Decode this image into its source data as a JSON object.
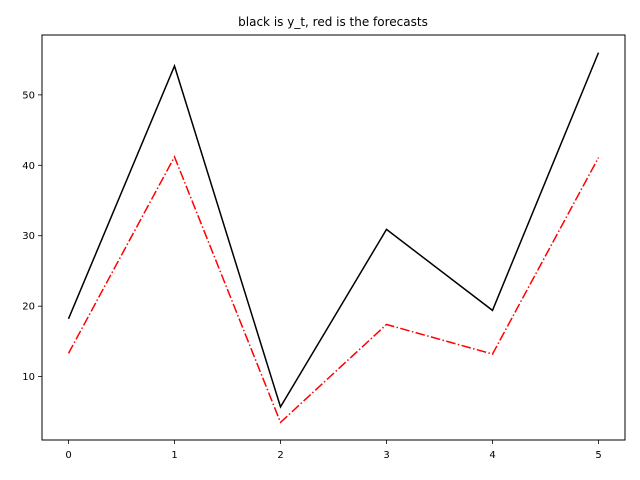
{
  "chart_data": {
    "type": "line",
    "title": "black is y_t, red is the forecasts",
    "xlabel": "",
    "ylabel": "",
    "x": [
      0,
      1,
      2,
      3,
      4,
      5
    ],
    "xticks": [
      0,
      1,
      2,
      3,
      4,
      5
    ],
    "yticks": [
      10,
      20,
      30,
      40,
      50
    ],
    "xlim": [
      -0.25,
      5.25
    ],
    "ylim": [
      1.0,
      58.5
    ],
    "grid": false,
    "series": [
      {
        "values": [
          18.2,
          54.1,
          5.7,
          30.9,
          19.4,
          56.0
        ],
        "color": "#000000",
        "style": "solid"
      },
      {
        "values": [
          13.3,
          41.2,
          3.5,
          17.4,
          13.2,
          41.1
        ],
        "color": "#ff0000",
        "style": "dashdot"
      }
    ]
  }
}
